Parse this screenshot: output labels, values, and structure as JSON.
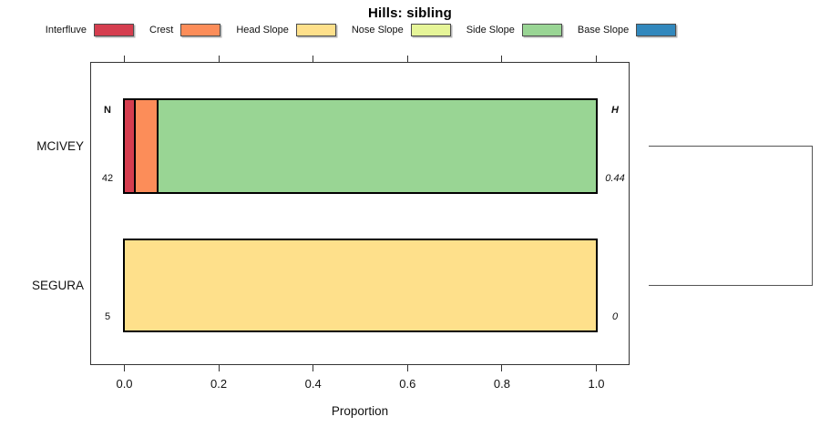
{
  "figure": {
    "title": "Hills: sibling",
    "xlabel": "Proportion"
  },
  "chart_data": {
    "type": "bar",
    "subtype": "horizontal-stacked-proportion",
    "title": "Hills: sibling",
    "xlabel": "Proportion",
    "xlim": [
      0,
      1
    ],
    "xticks": [
      "0.0",
      "0.2",
      "0.4",
      "0.6",
      "0.8",
      "1.0"
    ],
    "grid": false,
    "legend_position": "top",
    "legend": [
      {
        "label": "Interfluve",
        "color": "#D53E4F"
      },
      {
        "label": "Crest",
        "color": "#FC8D59"
      },
      {
        "label": "Head Slope",
        "color": "#FEE08B"
      },
      {
        "label": "Nose Slope",
        "color": "#E6F598"
      },
      {
        "label": "Side Slope",
        "color": "#99D594"
      },
      {
        "label": "Base Slope",
        "color": "#3288BD"
      }
    ],
    "column_headers": {
      "n_header": "N",
      "h_header": "H"
    },
    "rows": [
      {
        "label": "MCIVEY",
        "N": "42",
        "H": "0.44",
        "segments": [
          {
            "class": "Interfluve",
            "proportion": 0.024
          },
          {
            "class": "Crest",
            "proportion": 0.048
          },
          {
            "class": "Side Slope",
            "proportion": 0.928
          }
        ]
      },
      {
        "label": "SEGURA",
        "N": "5",
        "H": "0",
        "segments": [
          {
            "class": "Head Slope",
            "proportion": 1.0
          }
        ]
      }
    ],
    "dendrogram": {
      "type": "bracket",
      "joins": [
        "MCIVEY",
        "SEGURA"
      ]
    }
  }
}
